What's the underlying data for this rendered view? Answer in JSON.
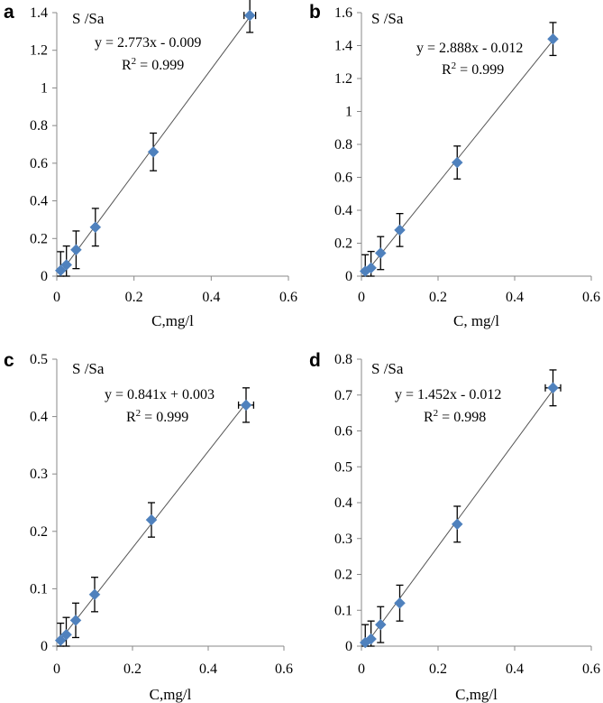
{
  "chart_data": [
    {
      "panel": "a",
      "type": "scatter",
      "ylabel": "S /Sa",
      "xlabel": "C,mg/l",
      "xlim": [
        0,
        0.6
      ],
      "ylim": [
        0,
        1.4
      ],
      "xticks": [
        0,
        0.2,
        0.4,
        0.6
      ],
      "xtick_labels": [
        "0",
        "0.2",
        "0.4",
        "0.6"
      ],
      "yticks": [
        0,
        0.2,
        0.4,
        0.6,
        0.8,
        1,
        1.2,
        1.4
      ],
      "ytick_labels": [
        "0",
        "0.2",
        "0.4",
        "0.6",
        "0.8",
        "1",
        "1.2",
        "1.4"
      ],
      "equation": "y = 2.773x - 0.009",
      "r2_label": "R",
      "r2_sup": "2",
      "r2_value": " = 0.999",
      "fit": {
        "slope": 2.773,
        "intercept": -0.009
      },
      "x": [
        0.01,
        0.025,
        0.05,
        0.1,
        0.25,
        0.5
      ],
      "y": [
        0.03,
        0.06,
        0.14,
        0.26,
        0.66,
        1.385
      ],
      "y_err": [
        0.1,
        0.1,
        0.1,
        0.1,
        0.1,
        0.09
      ],
      "x_err": [
        0,
        0,
        0,
        0,
        0,
        0.015
      ]
    },
    {
      "panel": "b",
      "type": "scatter",
      "ylabel": "S /Sa",
      "xlabel": "C, mg/l",
      "xlim": [
        0,
        0.6
      ],
      "ylim": [
        0,
        1.6
      ],
      "xticks": [
        0,
        0.2,
        0.4,
        0.6
      ],
      "xtick_labels": [
        "0",
        "0.2",
        "0.4",
        "0.6"
      ],
      "yticks": [
        0,
        0.2,
        0.4,
        0.6,
        0.8,
        1,
        1.2,
        1.4,
        1.6
      ],
      "ytick_labels": [
        "0",
        "0.2",
        "0.4",
        "0.6",
        "0.8",
        "1",
        "1.2",
        "1.4",
        "1.6"
      ],
      "equation": "y = 2.888x - 0.012",
      "r2_label": "R",
      "r2_sup": "2",
      "r2_value": " = 0.999",
      "fit": {
        "slope": 2.888,
        "intercept": -0.012
      },
      "x": [
        0.01,
        0.025,
        0.05,
        0.1,
        0.25,
        0.5
      ],
      "y": [
        0.03,
        0.05,
        0.14,
        0.28,
        0.69,
        1.44
      ],
      "y_err": [
        0.1,
        0.1,
        0.1,
        0.1,
        0.1,
        0.1
      ],
      "x_err": [
        0,
        0,
        0,
        0,
        0,
        0
      ]
    },
    {
      "panel": "c",
      "type": "scatter",
      "ylabel": "S /Sa",
      "xlabel": "C,mg/l",
      "xlim": [
        0,
        0.6
      ],
      "ylim": [
        0,
        0.5
      ],
      "xticks": [
        0,
        0.2,
        0.4,
        0.6
      ],
      "xtick_labels": [
        "0",
        "0.2",
        "0.4",
        "0.6"
      ],
      "yticks": [
        0,
        0.1,
        0.2,
        0.3,
        0.4,
        0.5
      ],
      "ytick_labels": [
        "0",
        "0.1",
        "0.2",
        "0.3",
        "0.4",
        "0.5"
      ],
      "equation": "y = 0.841x + 0.003",
      "r2_label": "R",
      "r2_sup": "2",
      "r2_value": " = 0.999",
      "fit": {
        "slope": 0.841,
        "intercept": 0.003
      },
      "x": [
        0.01,
        0.025,
        0.05,
        0.1,
        0.25,
        0.5
      ],
      "y": [
        0.01,
        0.02,
        0.045,
        0.09,
        0.22,
        0.42
      ],
      "y_err": [
        0.03,
        0.03,
        0.03,
        0.03,
        0.03,
        0.03
      ],
      "x_err": [
        0,
        0,
        0,
        0,
        0,
        0.02
      ]
    },
    {
      "panel": "d",
      "type": "scatter",
      "ylabel": "S /Sa",
      "xlabel": "C,mg/l",
      "xlim": [
        0,
        0.6
      ],
      "ylim": [
        0,
        0.8
      ],
      "xticks": [
        0,
        0.2,
        0.4,
        0.6
      ],
      "xtick_labels": [
        "0",
        "0.2",
        "0.4",
        "0.6"
      ],
      "yticks": [
        0,
        0.1,
        0.2,
        0.3,
        0.4,
        0.5,
        0.6,
        0.7,
        0.8
      ],
      "ytick_labels": [
        "0",
        "0.1",
        "0.2",
        "0.3",
        "0.4",
        "0.5",
        "0.6",
        "0.7",
        "0.8"
      ],
      "equation": "y = 1.452x - 0.012",
      "r2_label": "R",
      "r2_sup": "2",
      "r2_value": " = 0.998",
      "fit": {
        "slope": 1.452,
        "intercept": -0.012
      },
      "x": [
        0.01,
        0.025,
        0.05,
        0.1,
        0.25,
        0.5
      ],
      "y": [
        0.01,
        0.02,
        0.06,
        0.12,
        0.34,
        0.72
      ],
      "y_err": [
        0.05,
        0.05,
        0.05,
        0.05,
        0.05,
        0.05
      ],
      "x_err": [
        0,
        0,
        0,
        0,
        0,
        0.02
      ]
    }
  ]
}
